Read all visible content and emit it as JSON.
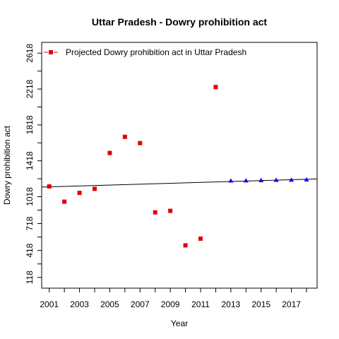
{
  "chart_data": {
    "type": "scatter",
    "title": "Uttar Pradesh  -  Dowry prohibition act",
    "xlabel": "Year",
    "ylabel": "Dowry prohibition act",
    "xlim": [
      2000.5,
      2018.7
    ],
    "ylim": [
      -2,
      2738
    ],
    "x_ticks": [
      2001,
      2003,
      2005,
      2007,
      2009,
      2011,
      2013,
      2015,
      2017
    ],
    "x_ticks_minor": [
      2002,
      2004,
      2006,
      2008,
      2010,
      2012,
      2014,
      2016,
      2018
    ],
    "y_ticks": [
      118,
      418,
      718,
      1018,
      1418,
      1818,
      2218,
      2618
    ],
    "y_ticks_minor": [
      268,
      568,
      868,
      1218,
      1618,
      2018,
      2418
    ],
    "legend": {
      "position": "top-left",
      "entries": [
        "Projected  Dowry prohibition act  in  Uttar Pradesh"
      ]
    },
    "grid": false,
    "colors": {
      "observed": "#e00000",
      "projected": "#0000ff",
      "trend": "#000000"
    },
    "series": [
      {
        "marker": "square",
        "x": [
          2001,
          2002,
          2003,
          2004,
          2005,
          2006,
          2007,
          2008,
          2009,
          2010,
          2011,
          2012
        ],
        "y": [
          1132,
          962,
          1060,
          1105,
          1505,
          1685,
          1615,
          843,
          860,
          475,
          550,
          2240
        ]
      },
      {
        "marker": "triangle",
        "x": [
          2013,
          2014,
          2015,
          2016,
          2017,
          2018
        ],
        "y": [
          1195,
          1197,
          1200,
          1203,
          1205,
          1208
        ]
      }
    ],
    "trend_line": {
      "x": [
        2000.5,
        2018.7
      ],
      "y": [
        1125,
        1215
      ]
    }
  }
}
